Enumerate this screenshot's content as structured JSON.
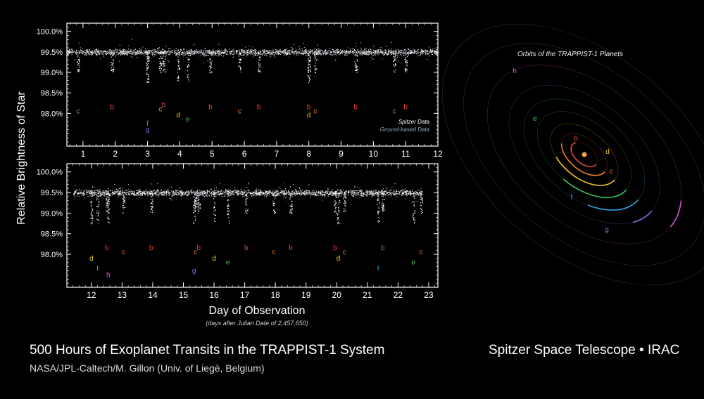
{
  "title": "500 Hours of Exoplanet Transits in the TRAPPIST-1 System",
  "credit": "NASA/JPL-Caltech/M. Gillon (Univ. of Liegè, Belgium)",
  "telescope": "Spitzer Space Telescope • IRAC",
  "chart_data": [
    {
      "type": "scatter",
      "panel": "top",
      "ylabel": "Relative Brightness of Star",
      "xlim": [
        0.5,
        12
      ],
      "ylim": [
        97.2,
        100.2
      ],
      "x_ticks": [
        1,
        2,
        3,
        4,
        5,
        6,
        7,
        8,
        9,
        10,
        11,
        12
      ],
      "y_ticks": [
        100.0,
        99.5,
        99.0,
        98.5,
        98.0
      ],
      "y_tick_labels": [
        "100.0%",
        "99.5%",
        "99.0%",
        "98.5%",
        "98.0%"
      ],
      "baseline": 99.5,
      "legend": [
        "Spitzer Data",
        "Ground-based Data"
      ],
      "legend_position": "lower-right",
      "transits": [
        {
          "planet": "c",
          "x": 0.85,
          "label_y": 98.0
        },
        {
          "planet": "b",
          "x": 1.9,
          "label_y": 98.1
        },
        {
          "planet": "f",
          "x": 3.0,
          "label_y": 97.7
        },
        {
          "planet": "g",
          "x": 3.0,
          "label_y": 97.55
        },
        {
          "planet": "c",
          "x": 3.4,
          "label_y": 98.05
        },
        {
          "planet": "b",
          "x": 3.5,
          "label_y": 98.15
        },
        {
          "planet": "d",
          "x": 3.95,
          "label_y": 97.9
        },
        {
          "planet": "e",
          "x": 4.25,
          "label_y": 97.8
        },
        {
          "planet": "b",
          "x": 4.95,
          "label_y": 98.1
        },
        {
          "planet": "c",
          "x": 5.85,
          "label_y": 98.0
        },
        {
          "planet": "b",
          "x": 6.45,
          "label_y": 98.1
        },
        {
          "planet": "b",
          "x": 8.0,
          "label_y": 98.1
        },
        {
          "planet": "c",
          "x": 8.2,
          "label_y": 98.0
        },
        {
          "planet": "d",
          "x": 8.0,
          "label_y": 97.9
        },
        {
          "planet": "b",
          "x": 9.45,
          "label_y": 98.1
        },
        {
          "planet": "c",
          "x": 10.65,
          "label_y": 98.0
        },
        {
          "planet": "b",
          "x": 11.0,
          "label_y": 98.1
        }
      ]
    },
    {
      "type": "scatter",
      "panel": "bottom",
      "xlabel": "Day of Observation",
      "xsublabel": "(days after Julian Date of 2,457,650)",
      "xlim": [
        11.2,
        23.3
      ],
      "ylim": [
        97.2,
        100.2
      ],
      "x_ticks": [
        12,
        13,
        14,
        15,
        16,
        17,
        18,
        19,
        20,
        21,
        22,
        23
      ],
      "y_ticks": [
        100.0,
        99.5,
        99.0,
        98.5,
        98.0
      ],
      "y_tick_labels": [
        "100.0%",
        "99.5%",
        "99.0%",
        "98.5%",
        "98.0%"
      ],
      "baseline": 99.5,
      "transits": [
        {
          "planet": "d",
          "x": 12.0,
          "label_y": 97.85
        },
        {
          "planet": "f",
          "x": 12.2,
          "label_y": 97.6
        },
        {
          "planet": "b",
          "x": 12.5,
          "label_y": 98.1
        },
        {
          "planet": "h",
          "x": 12.55,
          "label_y": 97.45
        },
        {
          "planet": "c",
          "x": 13.05,
          "label_y": 98.0
        },
        {
          "planet": "b",
          "x": 13.95,
          "label_y": 98.1
        },
        {
          "planet": "c",
          "x": 15.4,
          "label_y": 98.0
        },
        {
          "planet": "b",
          "x": 15.5,
          "label_y": 98.1
        },
        {
          "planet": "g",
          "x": 15.35,
          "label_y": 97.55
        },
        {
          "planet": "d",
          "x": 16.0,
          "label_y": 97.85
        },
        {
          "planet": "e",
          "x": 16.45,
          "label_y": 97.75
        },
        {
          "planet": "b",
          "x": 17.05,
          "label_y": 98.1
        },
        {
          "planet": "c",
          "x": 17.95,
          "label_y": 98.0
        },
        {
          "planet": "b",
          "x": 18.5,
          "label_y": 98.1
        },
        {
          "planet": "b",
          "x": 19.95,
          "label_y": 98.1
        },
        {
          "planet": "d",
          "x": 20.05,
          "label_y": 97.85
        },
        {
          "planet": "c",
          "x": 20.25,
          "label_y": 98.0
        },
        {
          "planet": "f",
          "x": 21.35,
          "label_y": 97.6
        },
        {
          "planet": "b",
          "x": 21.5,
          "label_y": 98.1
        },
        {
          "planet": "e",
          "x": 22.5,
          "label_y": 97.75
        },
        {
          "planet": "c",
          "x": 22.75,
          "label_y": 98.0
        }
      ]
    }
  ],
  "orbits": {
    "title": "Orbits of the TRAPPIST-1 Planets",
    "planets": [
      {
        "name": "b",
        "color": "#e8473c"
      },
      {
        "name": "c",
        "color": "#f07f2a"
      },
      {
        "name": "d",
        "color": "#f0c81e"
      },
      {
        "name": "e",
        "color": "#3ec65a"
      },
      {
        "name": "f",
        "color": "#2fa6e6"
      },
      {
        "name": "g",
        "color": "#8a6cf0"
      },
      {
        "name": "h",
        "color": "#e050d8"
      }
    ]
  },
  "colors": {
    "spitzer": "#ffffff",
    "ground": "#8fa6c8",
    "star": "#f2a640"
  }
}
